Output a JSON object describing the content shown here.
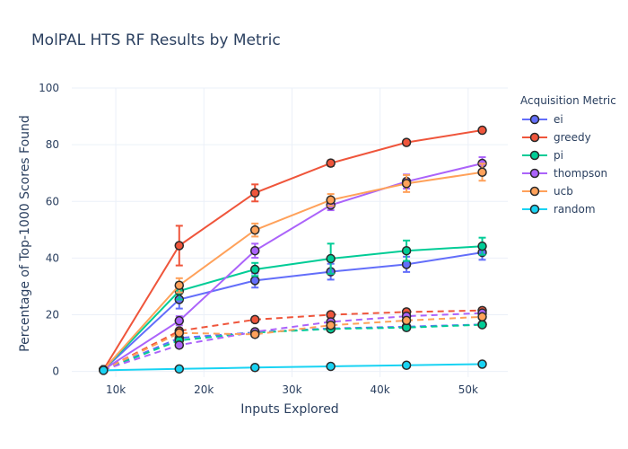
{
  "chart_data": {
    "type": "line",
    "title": "MolPAL HTS RF Results by Metric",
    "xlabel": "Inputs Explored",
    "ylabel": "Percentage of Top-1000 Scores Found",
    "xlim": [
      5000,
      54500
    ],
    "ylim": [
      -2,
      100
    ],
    "x_ticks": [
      10000,
      20000,
      30000,
      40000,
      50000
    ],
    "x_tick_labels": [
      "10k",
      "20k",
      "30k",
      "40k",
      "50k"
    ],
    "y_ticks": [
      0,
      20,
      40,
      60,
      80,
      100
    ],
    "y_tick_labels": [
      "0",
      "20",
      "40",
      "60",
      "80",
      "100"
    ],
    "grid": true,
    "legend": {
      "title": "Acquisition Metric",
      "placement": "top-right"
    },
    "x": [
      8600,
      17200,
      25800,
      34400,
      43000,
      51600
    ],
    "series": [
      {
        "name": "ei",
        "color": "#636efa",
        "style": "solid",
        "values": [
          0.6,
          25.4,
          32.1,
          35.2,
          37.8,
          42.0
        ],
        "errors": [
          0.3,
          3.2,
          2.5,
          2.8,
          2.7,
          2.6
        ]
      },
      {
        "name": "greedy",
        "color": "#ef553b",
        "style": "solid",
        "values": [
          0.6,
          44.4,
          63.0,
          73.5,
          80.8,
          85.1
        ],
        "errors": [
          0.3,
          7.0,
          3.0,
          1.0,
          0.8,
          0.6
        ]
      },
      {
        "name": "pi",
        "color": "#00cc96",
        "style": "solid",
        "values": [
          0.6,
          28.4,
          36.0,
          39.8,
          42.6,
          44.2
        ],
        "errors": [
          0.3,
          3.0,
          2.3,
          5.3,
          3.6,
          3.0
        ]
      },
      {
        "name": "thompson",
        "color": "#ab63fa",
        "style": "solid",
        "values": [
          0.6,
          17.9,
          42.6,
          58.7,
          67.0,
          73.4
        ],
        "errors": [
          0.3,
          1.6,
          2.5,
          1.8,
          2.5,
          2.2
        ]
      },
      {
        "name": "ucb",
        "color": "#ffa15a",
        "style": "solid",
        "values": [
          0.6,
          30.4,
          49.9,
          60.5,
          66.3,
          70.3
        ],
        "errors": [
          0.3,
          2.5,
          2.3,
          2.1,
          3.0,
          3.0
        ]
      },
      {
        "name": "random",
        "color": "#19d3f3",
        "style": "solid",
        "values": [
          0.4,
          0.9,
          1.4,
          1.8,
          2.2,
          2.6
        ],
        "errors": [
          0.1,
          0.2,
          0.2,
          0.2,
          0.3,
          0.3
        ]
      },
      {
        "name": "ei",
        "color": "#636efa",
        "style": "dash",
        "showlegend": false,
        "values": [
          0.6,
          11.8,
          13.8,
          15.2,
          15.8,
          16.6
        ],
        "errors": [
          0.3,
          0.8,
          0.8,
          0.8,
          0.8,
          0.8
        ]
      },
      {
        "name": "greedy",
        "color": "#ef553b",
        "style": "dash",
        "showlegend": false,
        "values": [
          0.6,
          14.3,
          18.3,
          20.0,
          21.0,
          21.5
        ],
        "errors": [
          0.3,
          0.9,
          0.9,
          0.9,
          0.9,
          0.9
        ]
      },
      {
        "name": "pi",
        "color": "#00cc96",
        "style": "dash",
        "showlegend": false,
        "values": [
          0.6,
          11.0,
          13.7,
          15.0,
          15.5,
          16.5
        ],
        "errors": [
          0.3,
          0.8,
          0.8,
          0.8,
          0.8,
          0.8
        ]
      },
      {
        "name": "thompson",
        "color": "#ab63fa",
        "style": "dash",
        "showlegend": false,
        "values": [
          0.6,
          9.3,
          14.0,
          17.5,
          19.5,
          20.6
        ],
        "errors": [
          0.3,
          0.8,
          0.8,
          0.8,
          0.8,
          0.8
        ]
      },
      {
        "name": "ucb",
        "color": "#ffa15a",
        "style": "dash",
        "showlegend": false,
        "values": [
          0.6,
          13.6,
          13.1,
          16.3,
          18.0,
          19.3
        ],
        "errors": [
          0.3,
          0.8,
          0.8,
          0.8,
          0.8,
          0.8
        ]
      }
    ]
  }
}
